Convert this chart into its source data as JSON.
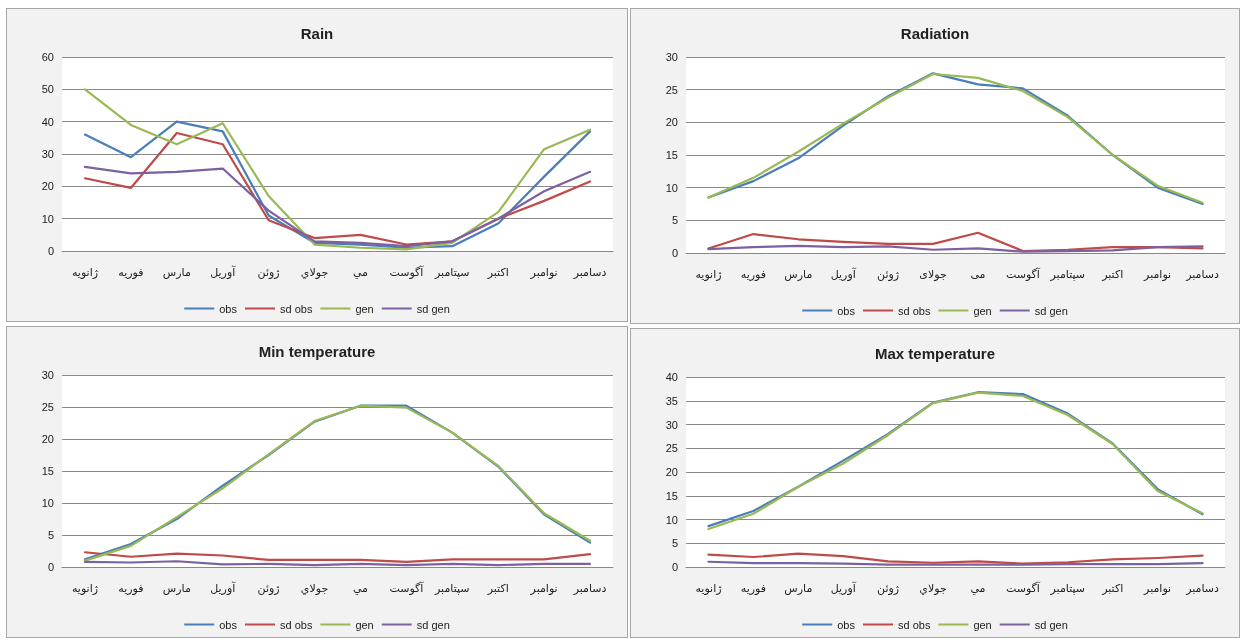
{
  "chart_data": [
    {
      "type": "line",
      "title": "Rain",
      "categories": [
        "ژانویه",
        "فوریه",
        "مارس",
        "آوریل",
        "ژوئن",
        "جولاي",
        "مي",
        "آگوست",
        "سپتامبر",
        "اکتبر",
        "نوامبر",
        "دسامبر"
      ],
      "ylim": [
        0,
        60
      ],
      "yticks": [
        0,
        10,
        20,
        30,
        40,
        50,
        60
      ],
      "grid": "y",
      "legend": "bottom",
      "marker": "none",
      "series": [
        {
          "name": "obs",
          "color": "#4a7ebb",
          "values": [
            36,
            29,
            40,
            37,
            11,
            2.5,
            2,
            1,
            1.5,
            8.5,
            23,
            37
          ]
        },
        {
          "name": "sd obs",
          "color": "#be4b48",
          "values": [
            22.5,
            19.5,
            36.5,
            33,
            9.5,
            4,
            5,
            2,
            3,
            10,
            15.5,
            21.5
          ]
        },
        {
          "name": "gen",
          "color": "#98b954",
          "values": [
            50,
            39,
            33,
            39.5,
            17,
            2,
            1,
            0.5,
            2.5,
            12,
            31.5,
            37.5
          ]
        },
        {
          "name": "sd gen",
          "color": "#7d60a0",
          "values": [
            26,
            24,
            24.5,
            25.5,
            12.5,
            3,
            2.5,
            1.5,
            3,
            10,
            18.5,
            24.5
          ]
        }
      ]
    },
    {
      "type": "line",
      "title": "Radiation",
      "categories": [
        "ژانویه",
        "فوریه",
        "مارس",
        "آوریل",
        "ژوئن",
        "جولای",
        "می",
        "آگوست",
        "سپتامبر",
        "اکتبر",
        "نوامبر",
        "دسامبر"
      ],
      "ylim": [
        0,
        30
      ],
      "yticks": [
        0,
        5,
        10,
        15,
        20,
        25,
        30
      ],
      "grid": "y",
      "legend": "bottom",
      "marker": "none",
      "series": [
        {
          "name": "obs",
          "color": "#4a7ebb",
          "values": [
            8.5,
            11,
            14.5,
            19.5,
            24,
            27.5,
            25.8,
            25.2,
            21,
            15,
            10,
            7.5
          ]
        },
        {
          "name": "sd obs",
          "color": "#be4b48",
          "values": [
            0.7,
            2.9,
            2.1,
            1.7,
            1.4,
            1.4,
            3.1,
            0.3,
            0.5,
            0.9,
            0.9,
            0.7
          ]
        },
        {
          "name": "gen",
          "color": "#98b954",
          "values": [
            8.5,
            11.5,
            15.5,
            19.8,
            23.8,
            27.4,
            26.8,
            24.8,
            20.8,
            15,
            10.3,
            7.7
          ]
        },
        {
          "name": "sd gen",
          "color": "#7d60a0",
          "values": [
            0.6,
            0.9,
            1.1,
            0.9,
            1,
            0.5,
            0.7,
            0.2,
            0.3,
            0.4,
            0.9,
            1
          ]
        }
      ]
    },
    {
      "type": "line",
      "title": "Min temperature",
      "categories": [
        "ژانویه",
        "فوریه",
        "مارس",
        "آوریل",
        "ژوئن",
        "جولاي",
        "مي",
        "آگوست",
        "سپتامبر",
        "اکتبر",
        "نوامبر",
        "دسامبر"
      ],
      "ylim": [
        0,
        30
      ],
      "yticks": [
        0,
        5,
        10,
        15,
        20,
        25,
        30
      ],
      "grid": "y",
      "legend": "bottom",
      "marker": "none",
      "series": [
        {
          "name": "obs",
          "color": "#4a7ebb",
          "values": [
            1.2,
            3.6,
            7.5,
            12.7,
            17.5,
            22.7,
            25.2,
            25.2,
            21,
            15.7,
            8.2,
            3.8
          ]
        },
        {
          "name": "sd obs",
          "color": "#be4b48",
          "values": [
            2.3,
            1.6,
            2.1,
            1.8,
            1.1,
            1.1,
            1.1,
            0.8,
            1.2,
            1.2,
            1.2,
            2
          ]
        },
        {
          "name": "gen",
          "color": "#98b954",
          "values": [
            1,
            3.3,
            7.8,
            12.3,
            17.6,
            22.8,
            25.2,
            24.9,
            21,
            15.8,
            8.4,
            4.1
          ]
        },
        {
          "name": "sd gen",
          "color": "#7d60a0",
          "values": [
            0.8,
            0.7,
            0.9,
            0.4,
            0.5,
            0.3,
            0.5,
            0.3,
            0.5,
            0.3,
            0.5,
            0.5
          ]
        }
      ]
    },
    {
      "type": "line",
      "title": "Max temperature",
      "categories": [
        "ژانویه",
        "فوریه",
        "مارس",
        "آوریل",
        "ژوئن",
        "جولاي",
        "مي",
        "آگوست",
        "سپتامبر",
        "اکتبر",
        "نوامبر",
        "دسامبر"
      ],
      "ylim": [
        0,
        40
      ],
      "yticks": [
        0,
        5,
        10,
        15,
        20,
        25,
        30,
        35,
        40
      ],
      "grid": "y",
      "legend": "bottom",
      "marker": "none",
      "series": [
        {
          "name": "obs",
          "color": "#4a7ebb",
          "values": [
            8.6,
            11.8,
            16.9,
            22.4,
            28,
            34.6,
            36.8,
            36.4,
            32.3,
            26,
            16.4,
            11.1
          ]
        },
        {
          "name": "sd obs",
          "color": "#be4b48",
          "values": [
            2.6,
            2.1,
            2.8,
            2.3,
            1.2,
            0.9,
            1.2,
            0.7,
            1,
            1.6,
            1.9,
            2.4
          ]
        },
        {
          "name": "gen",
          "color": "#98b954",
          "values": [
            8,
            11.2,
            16.9,
            21.8,
            27.8,
            34.5,
            36.7,
            36,
            32,
            25.9,
            16,
            11.3
          ]
        },
        {
          "name": "sd gen",
          "color": "#7d60a0",
          "values": [
            1.1,
            0.8,
            0.8,
            0.7,
            0.5,
            0.5,
            0.5,
            0.5,
            0.6,
            0.6,
            0.6,
            0.8
          ]
        }
      ]
    }
  ]
}
